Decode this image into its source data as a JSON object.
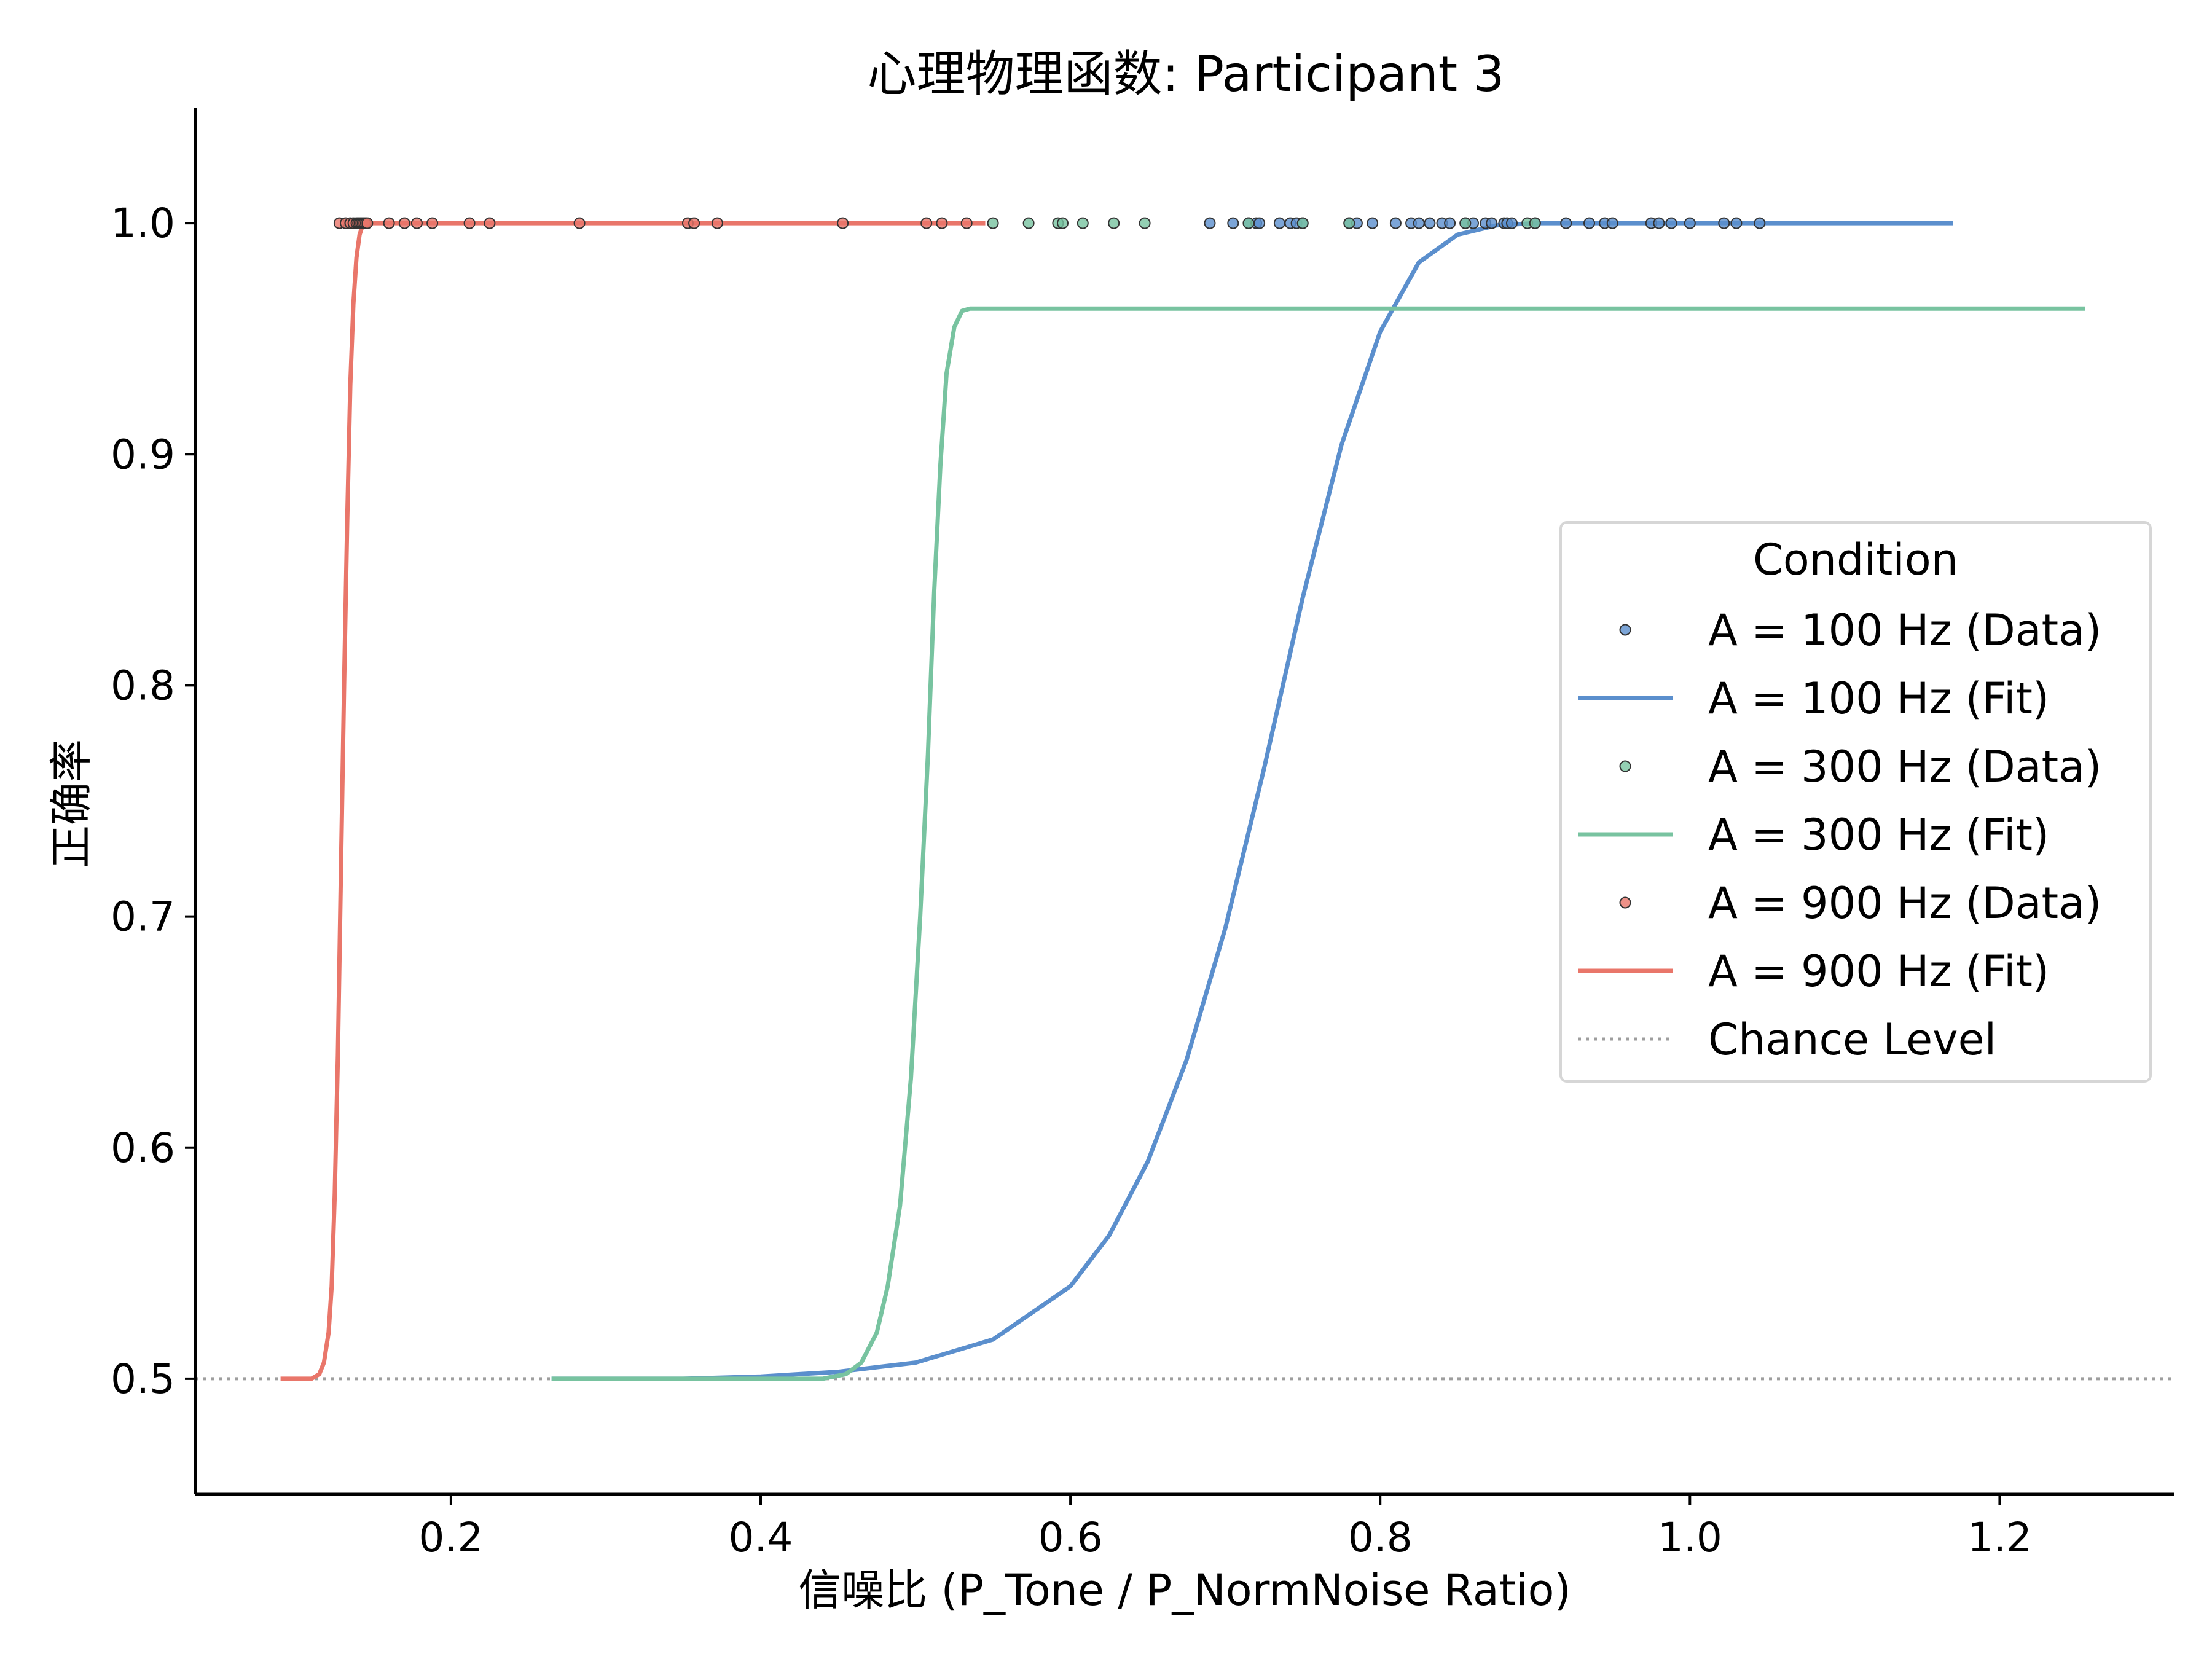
{
  "chart_data": {
    "type": "line",
    "title": "心理物理函数: Participant 3",
    "xlabel": "信噪比 (P_Tone / P_NormNoise Ratio)",
    "ylabel": "正确率",
    "xlim": [
      0.035,
      1.3125
    ],
    "ylim": [
      0.45,
      1.05
    ],
    "x_ticks": [
      0.2,
      0.4,
      0.6,
      0.8,
      1.0,
      1.2
    ],
    "x_tick_labels": [
      "0.2",
      "0.4",
      "0.6",
      "0.8",
      "1.0",
      "1.2"
    ],
    "y_ticks": [
      0.5,
      0.6,
      0.7,
      0.8,
      0.9,
      1.0
    ],
    "y_tick_labels": [
      "0.5",
      "0.6",
      "0.7",
      "0.8",
      "0.9",
      "1.0"
    ],
    "grid": false,
    "legend": {
      "title": "Condition",
      "placement": "center-right",
      "entries": [
        {
          "label": "A = 100 Hz (Data)",
          "kind": "marker",
          "color": "#5b8fcd"
        },
        {
          "label": "A = 100 Hz (Fit)",
          "kind": "line",
          "color": "#5b8fcd"
        },
        {
          "label": "A = 300 Hz (Data)",
          "kind": "marker",
          "color": "#78c3a0"
        },
        {
          "label": "A = 300 Hz (Fit)",
          "kind": "line",
          "color": "#78c3a0"
        },
        {
          "label": "A = 900 Hz (Data)",
          "kind": "marker",
          "color": "#e9766a"
        },
        {
          "label": "A = 900 Hz (Fit)",
          "kind": "line",
          "color": "#e9766a"
        },
        {
          "label": "Chance Level",
          "kind": "dotted",
          "color": "#9e9e9e"
        }
      ]
    },
    "chance_level": 0.5,
    "series": [
      {
        "name": "A = 100 Hz (Data)",
        "kind": "scatter",
        "color": "#5b8fcd",
        "x": [
          0.69,
          0.705,
          0.715,
          0.72,
          0.722,
          0.735,
          0.742,
          0.746,
          0.75,
          0.78,
          0.785,
          0.795,
          0.81,
          0.82,
          0.825,
          0.832,
          0.84,
          0.845,
          0.855,
          0.86,
          0.868,
          0.872,
          0.88,
          0.882,
          0.885,
          0.9,
          0.92,
          0.935,
          0.945,
          0.95,
          0.975,
          0.98,
          0.988,
          1.0,
          1.022,
          1.03,
          1.045
        ],
        "y": [
          1.0,
          1.0,
          1.0,
          1.0,
          1.0,
          1.0,
          1.0,
          1.0,
          1.0,
          1.0,
          1.0,
          1.0,
          1.0,
          1.0,
          1.0,
          1.0,
          1.0,
          1.0,
          1.0,
          1.0,
          1.0,
          1.0,
          1.0,
          1.0,
          1.0,
          1.0,
          1.0,
          1.0,
          1.0,
          1.0,
          1.0,
          1.0,
          1.0,
          1.0,
          1.0,
          1.0,
          1.0
        ]
      },
      {
        "name": "A = 100 Hz (Fit)",
        "kind": "line",
        "color": "#5b8fcd",
        "x": [
          0.265,
          0.35,
          0.4,
          0.45,
          0.5,
          0.55,
          0.6,
          0.625,
          0.65,
          0.675,
          0.7,
          0.725,
          0.75,
          0.775,
          0.8,
          0.825,
          0.85,
          0.875,
          0.9,
          0.925,
          0.95,
          1.0,
          1.1,
          1.17
        ],
        "y": [
          0.5,
          0.5,
          0.501,
          0.503,
          0.507,
          0.517,
          0.54,
          0.562,
          0.594,
          0.638,
          0.695,
          0.764,
          0.838,
          0.904,
          0.953,
          0.983,
          0.995,
          0.999,
          1.0,
          1.0,
          1.0,
          1.0,
          1.0,
          1.0
        ]
      },
      {
        "name": "A = 300 Hz (Data)",
        "kind": "scatter",
        "color": "#78c3a0",
        "x": [
          0.55,
          0.573,
          0.592,
          0.595,
          0.608,
          0.628,
          0.648,
          0.715,
          0.75,
          0.78,
          0.855,
          0.895,
          0.9
        ],
        "y": [
          1.0,
          1.0,
          1.0,
          1.0,
          1.0,
          1.0,
          1.0,
          1.0,
          1.0,
          1.0,
          1.0,
          1.0,
          1.0
        ]
      },
      {
        "name": "A = 300 Hz (Fit)",
        "kind": "line",
        "color": "#78c3a0",
        "x": [
          0.265,
          0.44,
          0.455,
          0.465,
          0.475,
          0.482,
          0.49,
          0.497,
          0.503,
          0.508,
          0.512,
          0.516,
          0.52,
          0.525,
          0.53,
          0.535,
          0.6,
          0.8,
          1.0,
          1.255
        ],
        "y": [
          0.5,
          0.5,
          0.502,
          0.507,
          0.52,
          0.54,
          0.575,
          0.63,
          0.7,
          0.77,
          0.84,
          0.895,
          0.935,
          0.955,
          0.962,
          0.963,
          0.963,
          0.963,
          0.963,
          0.963
        ]
      },
      {
        "name": "A = 900 Hz (Data)",
        "kind": "scatter",
        "color": "#e9766a",
        "x": [
          0.128,
          0.132,
          0.135,
          0.137,
          0.139,
          0.14,
          0.141,
          0.142,
          0.143,
          0.144,
          0.145,
          0.146,
          0.16,
          0.17,
          0.178,
          0.188,
          0.212,
          0.225,
          0.283,
          0.353,
          0.357,
          0.372,
          0.453,
          0.507,
          0.517,
          0.533
        ],
        "y": [
          1.0,
          1.0,
          1.0,
          1.0,
          1.0,
          1.0,
          1.0,
          1.0,
          1.0,
          1.0,
          1.0,
          1.0,
          1.0,
          1.0,
          1.0,
          1.0,
          1.0,
          1.0,
          1.0,
          1.0,
          1.0,
          1.0,
          1.0,
          1.0,
          1.0,
          1.0
        ]
      },
      {
        "name": "A = 900 Hz (Fit)",
        "kind": "line",
        "color": "#e9766a",
        "x": [
          0.09,
          0.11,
          0.115,
          0.118,
          0.121,
          0.123,
          0.125,
          0.127,
          0.129,
          0.131,
          0.133,
          0.135,
          0.137,
          0.139,
          0.141,
          0.143,
          0.145,
          0.147,
          0.2,
          0.3,
          0.4,
          0.5,
          0.545
        ],
        "y": [
          0.5,
          0.5,
          0.502,
          0.507,
          0.52,
          0.54,
          0.58,
          0.64,
          0.72,
          0.8,
          0.87,
          0.93,
          0.965,
          0.985,
          0.995,
          0.999,
          1.0,
          1.0,
          1.0,
          1.0,
          1.0,
          1.0,
          1.0
        ]
      }
    ]
  }
}
